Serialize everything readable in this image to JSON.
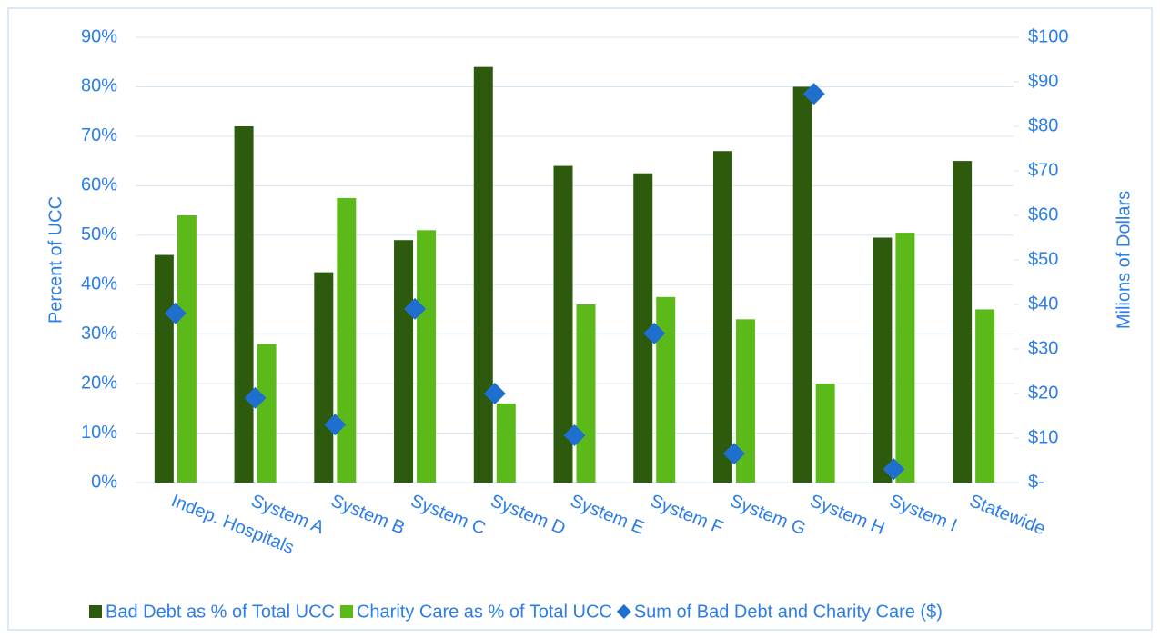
{
  "chart_data": {
    "type": "bar",
    "categories": [
      "Indep. Hospitals",
      "System A",
      "System B",
      "System C",
      "System D",
      "System E",
      "System F",
      "System G",
      "System H",
      "System I",
      "Statewide"
    ],
    "series": [
      {
        "name": "Bad Debt as % of Total UCC",
        "color": "#2d5a0c",
        "type": "bar",
        "values": [
          46,
          72,
          42.5,
          49,
          84,
          64,
          62.5,
          67,
          80,
          49.5,
          65
        ]
      },
      {
        "name": "Charity Care as % of Total UCC",
        "color": "#5cb91a",
        "type": "bar",
        "values": [
          54,
          28,
          57.5,
          51,
          16,
          36,
          37.5,
          33,
          20,
          50.5,
          35
        ]
      },
      {
        "name": "Sum of Bad Debt and Charity Care ($)",
        "color": "#1f6fcf",
        "type": "scatter",
        "axis": "y2",
        "values": [
          38,
          19,
          13,
          39,
          20,
          10.6,
          33.5,
          6.5,
          87.3,
          3,
          null
        ]
      }
    ],
    "ylabel": "Percent of UCC",
    "y2label": "Milions of Dollars",
    "ylim": [
      0,
      90
    ],
    "yticks": [
      {
        "value": 0,
        "label": "0%"
      },
      {
        "value": 10,
        "label": "10%"
      },
      {
        "value": 20,
        "label": "20%"
      },
      {
        "value": 30,
        "label": "30%"
      },
      {
        "value": 40,
        "label": "40%"
      },
      {
        "value": 50,
        "label": "50%"
      },
      {
        "value": 60,
        "label": "60%"
      },
      {
        "value": 70,
        "label": "70%"
      },
      {
        "value": 80,
        "label": "80%"
      },
      {
        "value": 90,
        "label": "90%"
      }
    ],
    "y2lim": [
      0,
      100
    ],
    "y2ticks": [
      {
        "value": 0,
        "label": "$-"
      },
      {
        "value": 10,
        "label": "$10"
      },
      {
        "value": 20,
        "label": "$20"
      },
      {
        "value": 30,
        "label": "$30"
      },
      {
        "value": 40,
        "label": "$40"
      },
      {
        "value": 50,
        "label": "$50"
      },
      {
        "value": 60,
        "label": "$60"
      },
      {
        "value": 70,
        "label": "$70"
      },
      {
        "value": 80,
        "label": "$80"
      },
      {
        "value": 90,
        "label": "$90"
      },
      {
        "value": 100,
        "label": "$100"
      }
    ],
    "grid": true,
    "legend": "bottom"
  }
}
